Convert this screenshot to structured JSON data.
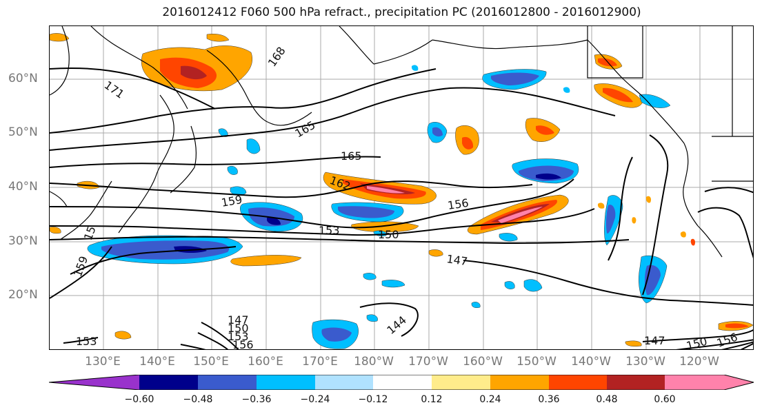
{
  "title": "2016012412 F060 500 hPa refract., precipitation PC (2016012800 - 2016012900)",
  "lat_labels": [
    {
      "text": "60°N"
    },
    {
      "text": "50°N"
    },
    {
      "text": "40°N"
    },
    {
      "text": "30°N"
    },
    {
      "text": "20°N"
    }
  ],
  "lon_labels": [
    {
      "text": "130°E"
    },
    {
      "text": "140°E"
    },
    {
      "text": "150°E"
    },
    {
      "text": "160°E"
    },
    {
      "text": "170°E"
    },
    {
      "text": "180°W"
    },
    {
      "text": "170°W"
    },
    {
      "text": "160°W"
    },
    {
      "text": "150°W"
    },
    {
      "text": "140°W"
    },
    {
      "text": "130°W"
    },
    {
      "text": "120°W"
    }
  ],
  "contour_labels": [
    "171",
    "168",
    "165",
    "165",
    "162",
    "159",
    "156",
    "153",
    "150",
    "147",
    "147",
    "150",
    "153",
    "156",
    "144",
    "153",
    "159",
    "156",
    "150",
    "147",
    "15"
  ],
  "colorbar": {
    "colors": [
      "#9932cc",
      "#00008b",
      "#3a5bcd",
      "#00bfff",
      "#b0e2ff",
      "#ffffff",
      "#ffec8b",
      "#ffa500",
      "#ff4500",
      "#b22222",
      "#ff82ab"
    ],
    "ticks": [
      "−0.60",
      "−0.48",
      "−0.36",
      "−0.24",
      "−0.12",
      "0.12",
      "0.24",
      "0.36",
      "0.48",
      "0.60"
    ]
  }
}
